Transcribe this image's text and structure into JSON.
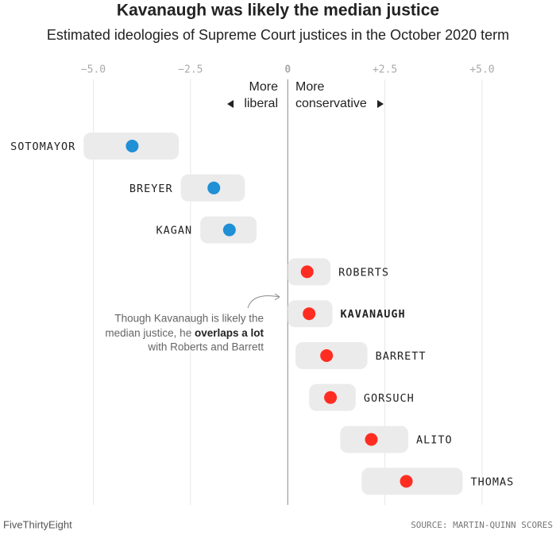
{
  "chart_data": {
    "type": "dot-range",
    "title": "Kavanaugh was likely the median justice",
    "subtitle": "Estimated ideologies of Supreme Court justices in the October 2020 term",
    "categories": [
      "SOTOMAYOR",
      "BREYER",
      "KAGAN",
      "ROBERTS",
      "KAVANAUGH",
      "BARRETT",
      "GORSUCH",
      "ALITO",
      "THOMAS"
    ],
    "values": [
      -4.0,
      -1.9,
      -1.5,
      0.5,
      0.55,
      1.0,
      1.1,
      2.15,
      3.05
    ],
    "low": [
      -5.25,
      -2.75,
      -2.25,
      0.0,
      0.0,
      0.2,
      0.55,
      1.35,
      1.9
    ],
    "high": [
      -2.8,
      -1.1,
      -0.8,
      1.1,
      1.15,
      2.05,
      1.75,
      3.1,
      4.5
    ],
    "colors": [
      "#1f8fd6",
      "#1f8fd6",
      "#1f8fd6",
      "#ff2d21",
      "#ff2d21",
      "#ff2d21",
      "#ff2d21",
      "#ff2d21",
      "#ff2d21"
    ],
    "range_color": "#ebebeb",
    "xlim": [
      -7.4,
      6.9
    ],
    "xticks": [
      {
        "value": -5,
        "label": "−5.0"
      },
      {
        "value": -2.5,
        "label": "−2.5"
      },
      0,
      {
        "value": 2.5,
        "label": "+2.5"
      },
      {
        "value": 5,
        "label": "+5.0"
      }
    ],
    "grid": true,
    "direction_labels": {
      "liberal": [
        "More",
        "liberal"
      ],
      "conservative": [
        "More",
        "conservative"
      ]
    },
    "annotation": {
      "lines": [
        "Though Kavanaugh is likely the",
        "median justice, he ",
        "with Roberts and Barrett"
      ],
      "bold": "overlaps a lot"
    },
    "credit": "FiveThirtyEight",
    "source": "SOURCE: MARTIN-QUINN SCORES"
  }
}
